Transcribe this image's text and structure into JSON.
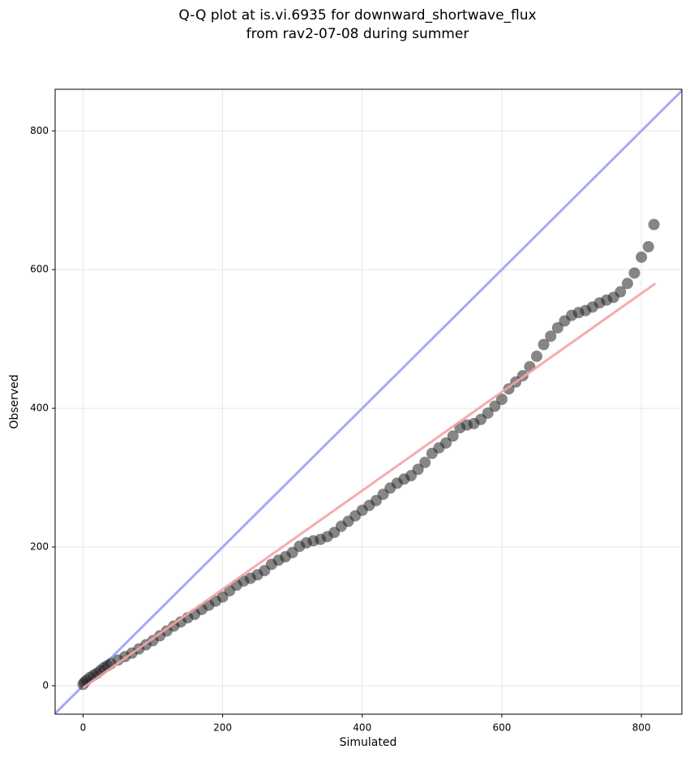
{
  "chart_data": {
    "type": "scatter",
    "title": [
      "Q-Q plot at is.vi.6935 for downward_shortwave_flux",
      "from rav2-07-08 during summer"
    ],
    "xlabel": "Simulated",
    "ylabel": "Observed",
    "x": [
      0,
      2,
      5,
      10,
      15,
      20,
      25,
      30,
      35,
      40,
      50,
      60,
      70,
      80,
      90,
      100,
      110,
      120,
      130,
      140,
      150,
      160,
      170,
      180,
      190,
      200,
      210,
      220,
      230,
      240,
      250,
      260,
      270,
      280,
      290,
      300,
      310,
      320,
      330,
      340,
      350,
      360,
      370,
      380,
      390,
      400,
      410,
      420,
      430,
      440,
      450,
      460,
      470,
      480,
      490,
      500,
      510,
      520,
      530,
      540,
      550,
      560,
      570,
      580,
      590,
      600,
      610,
      620,
      630,
      640,
      650,
      660,
      670,
      680,
      690,
      700,
      710,
      720,
      730,
      740,
      750,
      760,
      770,
      780,
      790,
      800,
      810,
      818
    ],
    "values": [
      2,
      5,
      8,
      12,
      15,
      18,
      22,
      26,
      29,
      32,
      37,
      42,
      47,
      53,
      59,
      65,
      72,
      79,
      86,
      92,
      98,
      103,
      110,
      116,
      122,
      128,
      137,
      145,
      151,
      155,
      160,
      166,
      175,
      181,
      186,
      192,
      201,
      206,
      209,
      211,
      215,
      221,
      230,
      237,
      245,
      253,
      260,
      267,
      276,
      285,
      292,
      298,
      303,
      312,
      322,
      335,
      343,
      350,
      360,
      372,
      376,
      378,
      384,
      393,
      403,
      413,
      428,
      438,
      447,
      460,
      475,
      492,
      504,
      516,
      526,
      534,
      538,
      541,
      546,
      552,
      556,
      560,
      568,
      580,
      595,
      618,
      633,
      665
    ],
    "color": "#222222",
    "fit_line": {
      "x": [
        0,
        820
      ],
      "values": [
        -3,
        580
      ],
      "color": "#f4a3a6"
    },
    "identity_line": {
      "color": "#a8a8f6"
    },
    "xlim": [
      -40,
      858
    ],
    "ylim": [
      -41,
      860
    ],
    "xticks": [
      0,
      200,
      400,
      600,
      800
    ],
    "yticks": [
      0,
      200,
      400,
      600,
      800
    ],
    "grid": true
  }
}
